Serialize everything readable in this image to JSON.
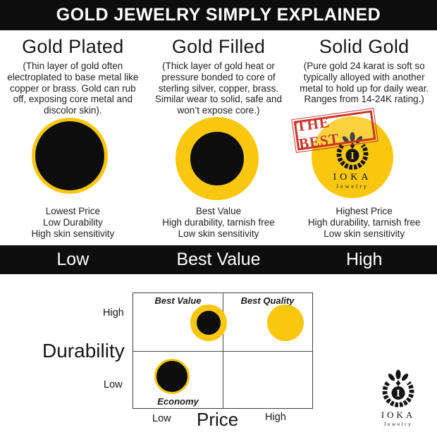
{
  "colors": {
    "gold": "#F9C70E",
    "black": "#0D0D0D",
    "stamp_red": "#C8372D"
  },
  "header": {
    "title": "GOLD JEWELRY SIMPLY EXPLAINED"
  },
  "columns": [
    {
      "title": "Gold Plated",
      "description": "(Thin layer of gold often electroplated to base metal like copper or brass. Gold can rub off, exposing core metal and discolor skin).",
      "stats": [
        "Lowest Price",
        "Low Durability",
        "High skin sensitivity"
      ],
      "scale_label": "Low"
    },
    {
      "title": "Gold Filled",
      "description": "(Thick layer of gold heat or pressure bonded to core of sterling silver, copper, brass. Similar wear to solid, safe and won’t expose core.)",
      "stats": [
        "Best Value",
        "High durability, tarnish free",
        "Low skin sensitivity"
      ],
      "scale_label": "Best Value"
    },
    {
      "title": "Solid Gold",
      "description": "(Pure gold 24 karat is soft so typically alloyed with another metal to hold up for daily wear. Ranges from 14-24K rating.)",
      "stats": [
        "Highest Price",
        "High durability, tarnish free",
        "Low skin sensitivity"
      ],
      "scale_label": "High"
    }
  ],
  "stamp": {
    "label": "THE BEST"
  },
  "logo": {
    "name": "IOKA",
    "subtitle": "Jewelry"
  },
  "chart_data": {
    "type": "scatter",
    "xlabel": "Price",
    "ylabel": "Durability",
    "x_tick_labels": [
      "Low",
      "High"
    ],
    "y_tick_labels": [
      "High",
      "Low"
    ],
    "quadrant_labels": {
      "top_left": "Best Value",
      "top_right": "Best Quality",
      "bottom_left": "Economy",
      "bottom_right": ""
    },
    "layout": {
      "quadrant_grid": true,
      "border": true,
      "legend": false
    },
    "points": [
      {
        "id": "best-value",
        "label": "Gold Filled (Best Value)",
        "x": "Low price",
        "y": "High durability",
        "fx": 0.42,
        "fy": 0.26,
        "r": 26,
        "fill": "#0D0D0D",
        "ring": "#F9C70E",
        "ring_width": 9
      },
      {
        "id": "best-quality",
        "label": "Solid Gold (Best Quality)",
        "x": "High price",
        "y": "High durability",
        "fx": 0.85,
        "fy": 0.26,
        "r": 26,
        "fill": "#F9C70E",
        "ring": "#F9C70E",
        "ring_width": 0
      },
      {
        "id": "economy",
        "label": "Gold Plated (Economy)",
        "x": "Low price",
        "y": "Low durability",
        "fx": 0.215,
        "fy": 0.725,
        "r": 25,
        "fill": "#0D0D0D",
        "ring": "#F9C70E",
        "ring_width": 3
      }
    ]
  }
}
